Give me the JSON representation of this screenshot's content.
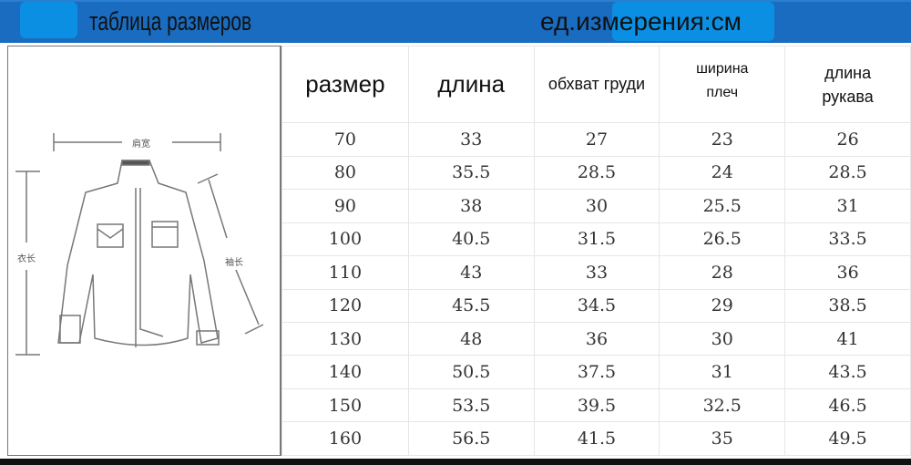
{
  "header": {
    "title": "таблица размеров",
    "unit": "ед.измерения:см",
    "color": "#1a6cc0"
  },
  "diagram": {
    "shoulder_label": "肩宽",
    "length_label": "衣长",
    "sleeve_label": "袖长"
  },
  "table": {
    "columns": [
      "размер",
      "длина",
      "обхват груди",
      "ширина плеч",
      "длина рукава"
    ],
    "rows": [
      [
        "70",
        "33",
        "27",
        "23",
        "26"
      ],
      [
        "80",
        "35.5",
        "28.5",
        "24",
        "28.5"
      ],
      [
        "90",
        "38",
        "30",
        "25.5",
        "31"
      ],
      [
        "100",
        "40.5",
        "31.5",
        "26.5",
        "33.5"
      ],
      [
        "110",
        "43",
        "33",
        "28",
        "36"
      ],
      [
        "120",
        "45.5",
        "34.5",
        "29",
        "38.5"
      ],
      [
        "130",
        "48",
        "36",
        "30",
        "41"
      ],
      [
        "140",
        "50.5",
        "37.5",
        "31",
        "43.5"
      ],
      [
        "150",
        "53.5",
        "39.5",
        "32.5",
        "46.5"
      ],
      [
        "160",
        "56.5",
        "41.5",
        "35",
        "49.5"
      ]
    ]
  }
}
